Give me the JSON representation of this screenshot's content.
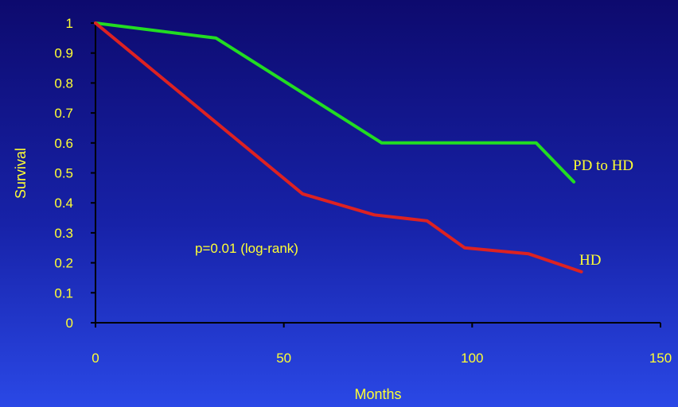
{
  "chart_data": {
    "type": "line",
    "xlabel": "Months",
    "ylabel": "Survival",
    "xlim": [
      0,
      150
    ],
    "ylim": [
      0,
      1
    ],
    "xticks": [
      "0",
      "50",
      "100",
      "150"
    ],
    "yticks": [
      "0",
      "0.1",
      "0.2",
      "0.3",
      "0.4",
      "0.5",
      "0.6",
      "0.7",
      "0.8",
      "0.9",
      "1"
    ],
    "grid": false,
    "annotation": "p=0.01 (log-rank)",
    "series": [
      {
        "name": "PD to HD",
        "color": "#22dd22",
        "points": [
          [
            0,
            1.0
          ],
          [
            32,
            0.95
          ],
          [
            76,
            0.6
          ],
          [
            117,
            0.6
          ],
          [
            127,
            0.47
          ]
        ]
      },
      {
        "name": "HD",
        "color": "#dd2222",
        "points": [
          [
            0,
            1.0
          ],
          [
            55,
            0.43
          ],
          [
            74,
            0.36
          ],
          [
            88,
            0.34
          ],
          [
            98,
            0.25
          ],
          [
            115,
            0.23
          ],
          [
            129,
            0.17
          ]
        ]
      }
    ],
    "colors": {
      "text": "#ffff33",
      "axis": "#000000",
      "background_top": "#0d0a6e",
      "background_bottom": "#2a48e6"
    }
  }
}
